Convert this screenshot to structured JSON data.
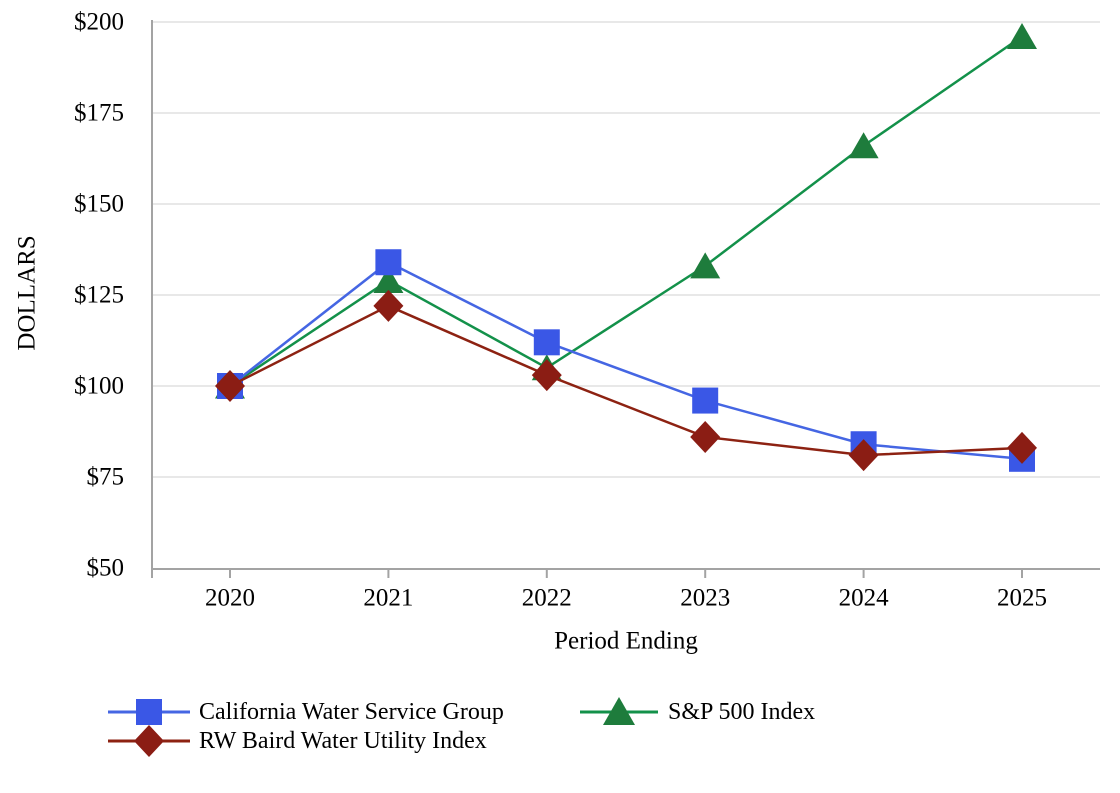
{
  "chart_data": {
    "type": "line",
    "title": "",
    "xlabel": "Period Ending",
    "ylabel": "DOLLARS",
    "categories": [
      "2020",
      "2021",
      "2022",
      "2023",
      "2024",
      "2025"
    ],
    "y_ticks": [
      "$50",
      "$75",
      "$100",
      "$125",
      "$150",
      "$175",
      "$200"
    ],
    "ylim": [
      50,
      200
    ],
    "grid": "horizontal-only",
    "legend_position": "bottom",
    "colors": {
      "gridline": "#e8e8e8",
      "axis": "#a3a3a3",
      "text": "#000000",
      "background": "#ffffff"
    },
    "series": [
      {
        "name": "California Water Service Group",
        "marker": "square",
        "color": "#3a57e6",
        "line_color": "#4566e3",
        "values": [
          100,
          134,
          112,
          96,
          84,
          80
        ]
      },
      {
        "name": "RW Baird Water Utility Index",
        "marker": "diamond",
        "color": "#8b1d14",
        "line_color": "#8d2212",
        "values": [
          100,
          122,
          103,
          86,
          81,
          83
        ]
      },
      {
        "name": "S&P 500 Index",
        "marker": "triangle",
        "color": "#1e7c3c",
        "line_color": "#13914a",
        "values": [
          100,
          129,
          105,
          133,
          166,
          196
        ]
      }
    ]
  }
}
